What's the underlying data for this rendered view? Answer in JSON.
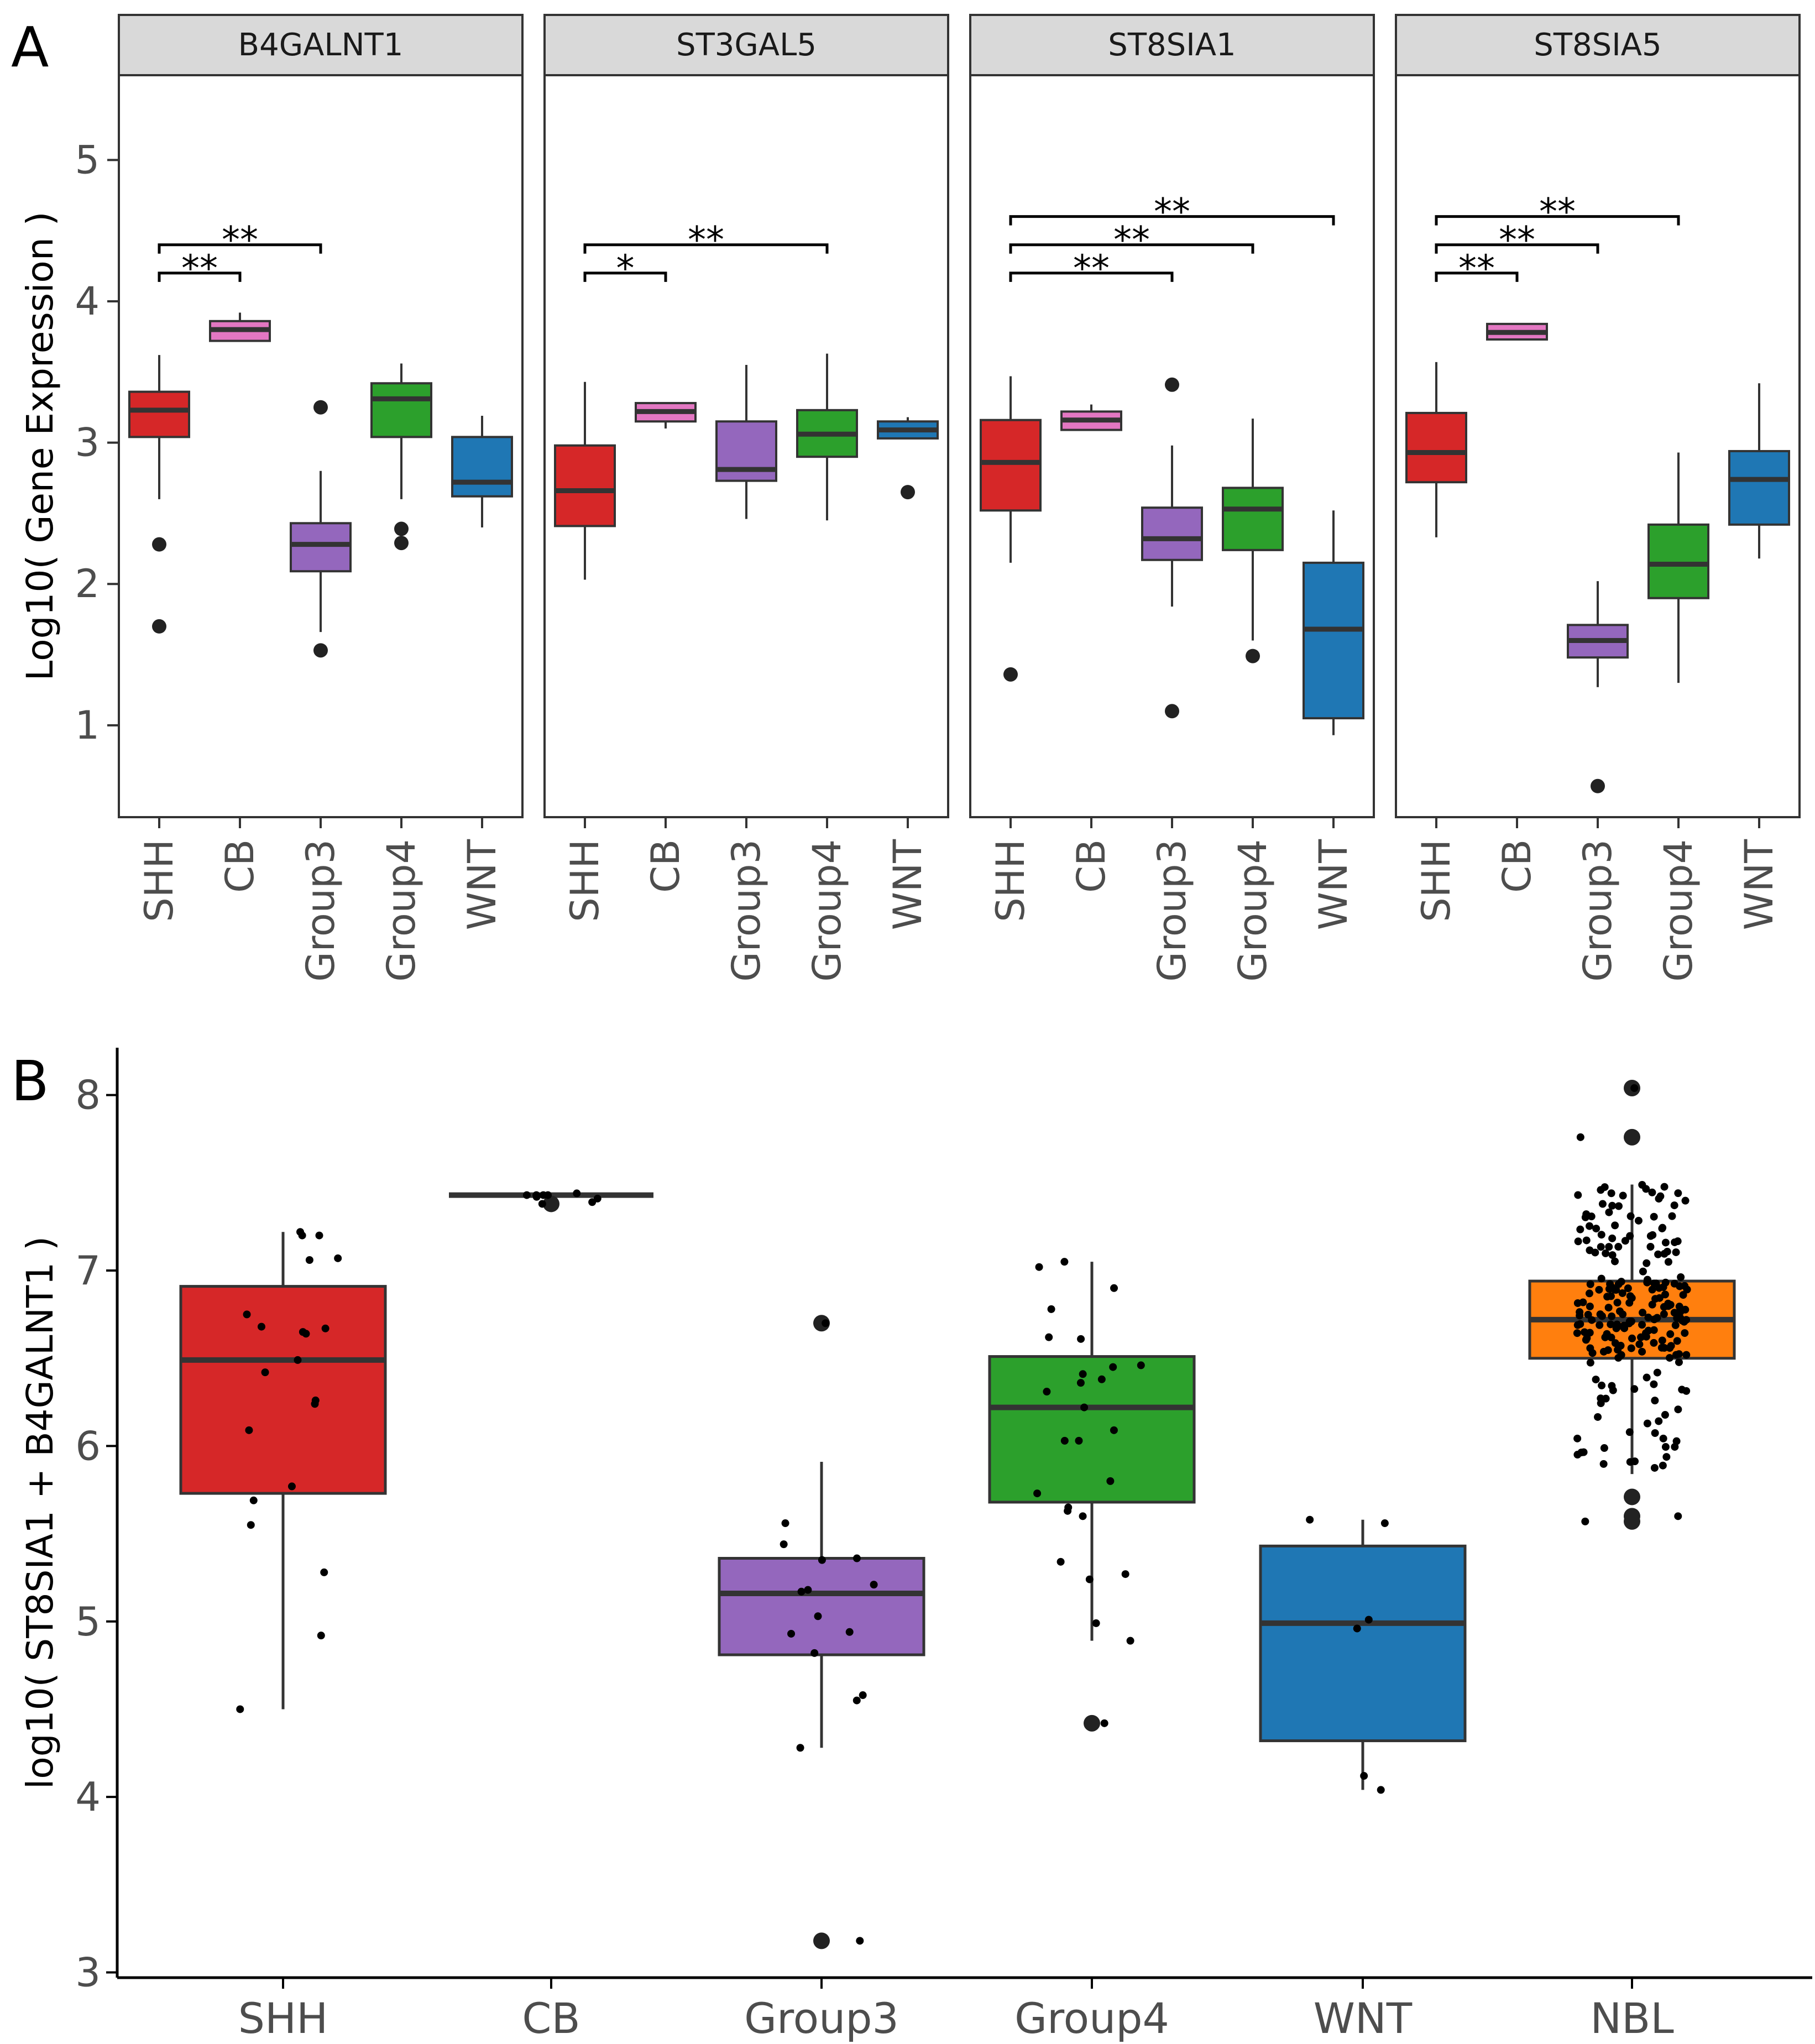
{
  "colors": {
    "SHH": "#d62728",
    "CB": "#e377c2",
    "Group3": "#9467bd",
    "Group4": "#2ca02c",
    "WNT": "#1f77b4",
    "NBL": "#ff7f0e",
    "strip": "#d9d9d9",
    "outline": "#333333",
    "axis_text": "#4d4d4d"
  },
  "panel_labels": {
    "a": "A",
    "b": "B"
  },
  "chart_data": [
    {
      "type": "boxplot",
      "facet_by": "gene",
      "ylabel": "Log10( Gene Expression )",
      "ylim": [
        0.35,
        5.6
      ],
      "yticks": [
        1,
        2,
        3,
        4,
        5
      ],
      "categories": [
        "SHH",
        "CB",
        "Group3",
        "Group4",
        "WNT"
      ],
      "panels": [
        {
          "gene": "B4GALNT1",
          "boxes": [
            {
              "group": "SHH",
              "whisker_low": 2.6,
              "q1": 3.04,
              "median": 3.23,
              "q3": 3.36,
              "whisker_high": 3.62,
              "outliers": [
                2.28,
                1.7
              ]
            },
            {
              "group": "CB",
              "whisker_low": 3.72,
              "q1": 3.72,
              "median": 3.8,
              "q3": 3.86,
              "whisker_high": 3.92,
              "outliers": []
            },
            {
              "group": "Group3",
              "whisker_low": 1.66,
              "q1": 2.09,
              "median": 2.28,
              "q3": 2.43,
              "whisker_high": 2.8,
              "outliers": [
                3.25,
                1.53
              ]
            },
            {
              "group": "Group4",
              "whisker_low": 2.6,
              "q1": 3.04,
              "median": 3.31,
              "q3": 3.42,
              "whisker_high": 3.56,
              "outliers": [
                2.39,
                2.29
              ]
            },
            {
              "group": "WNT",
              "whisker_low": 2.4,
              "q1": 2.62,
              "median": 2.72,
              "q3": 3.04,
              "whisker_high": 3.19,
              "outliers": []
            }
          ],
          "significance": [
            {
              "from": "SHH",
              "to": "CB",
              "y": 4.2,
              "label": "**"
            },
            {
              "from": "SHH",
              "to": "Group3",
              "y": 4.4,
              "label": "**"
            }
          ]
        },
        {
          "gene": "ST3GAL5",
          "boxes": [
            {
              "group": "SHH",
              "whisker_low": 2.03,
              "q1": 2.41,
              "median": 2.66,
              "q3": 2.98,
              "whisker_high": 3.43,
              "outliers": []
            },
            {
              "group": "CB",
              "whisker_low": 3.1,
              "q1": 3.15,
              "median": 3.22,
              "q3": 3.28,
              "whisker_high": 3.28,
              "outliers": []
            },
            {
              "group": "Group3",
              "whisker_low": 2.46,
              "q1": 2.73,
              "median": 2.81,
              "q3": 3.15,
              "whisker_high": 3.55,
              "outliers": []
            },
            {
              "group": "Group4",
              "whisker_low": 2.45,
              "q1": 2.9,
              "median": 3.06,
              "q3": 3.23,
              "whisker_high": 3.63,
              "outliers": []
            },
            {
              "group": "WNT",
              "whisker_low": 3.03,
              "q1": 3.03,
              "median": 3.09,
              "q3": 3.15,
              "whisker_high": 3.18,
              "outliers": [
                2.65
              ]
            }
          ],
          "significance": [
            {
              "from": "SHH",
              "to": "CB",
              "y": 4.2,
              "label": "*"
            },
            {
              "from": "SHH",
              "to": "Group4",
              "y": 4.4,
              "label": "**"
            }
          ]
        },
        {
          "gene": "ST8SIA1",
          "boxes": [
            {
              "group": "SHH",
              "whisker_low": 2.15,
              "q1": 2.52,
              "median": 2.86,
              "q3": 3.16,
              "whisker_high": 3.47,
              "outliers": [
                1.36
              ]
            },
            {
              "group": "CB",
              "whisker_low": 3.09,
              "q1": 3.09,
              "median": 3.16,
              "q3": 3.22,
              "whisker_high": 3.27,
              "outliers": []
            },
            {
              "group": "Group3",
              "whisker_low": 1.84,
              "q1": 2.17,
              "median": 2.32,
              "q3": 2.54,
              "whisker_high": 2.98,
              "outliers": [
                3.41,
                1.1
              ]
            },
            {
              "group": "Group4",
              "whisker_low": 1.6,
              "q1": 2.24,
              "median": 2.53,
              "q3": 2.68,
              "whisker_high": 3.17,
              "outliers": [
                1.49
              ]
            },
            {
              "group": "WNT",
              "whisker_low": 0.93,
              "q1": 1.05,
              "median": 1.68,
              "q3": 2.15,
              "whisker_high": 2.52,
              "outliers": []
            }
          ],
          "significance": [
            {
              "from": "SHH",
              "to": "Group3",
              "y": 4.2,
              "label": "**"
            },
            {
              "from": "SHH",
              "to": "Group4",
              "y": 4.4,
              "label": "**"
            },
            {
              "from": "SHH",
              "to": "WNT",
              "y": 4.6,
              "label": "**"
            }
          ]
        },
        {
          "gene": "ST8SIA5",
          "boxes": [
            {
              "group": "SHH",
              "whisker_low": 2.33,
              "q1": 2.72,
              "median": 2.93,
              "q3": 3.21,
              "whisker_high": 3.57,
              "outliers": []
            },
            {
              "group": "CB",
              "whisker_low": 3.73,
              "q1": 3.73,
              "median": 3.78,
              "q3": 3.84,
              "whisker_high": 3.84,
              "outliers": []
            },
            {
              "group": "Group3",
              "whisker_low": 1.27,
              "q1": 1.48,
              "median": 1.6,
              "q3": 1.71,
              "whisker_high": 2.02,
              "outliers": [
                0.57
              ]
            },
            {
              "group": "Group4",
              "whisker_low": 1.3,
              "q1": 1.9,
              "median": 2.14,
              "q3": 2.42,
              "whisker_high": 2.93,
              "outliers": []
            },
            {
              "group": "WNT",
              "whisker_low": 2.18,
              "q1": 2.42,
              "median": 2.74,
              "q3": 2.94,
              "whisker_high": 3.42,
              "outliers": []
            }
          ],
          "significance": [
            {
              "from": "SHH",
              "to": "CB",
              "y": 4.2,
              "label": "**"
            },
            {
              "from": "SHH",
              "to": "Group3",
              "y": 4.4,
              "label": "**"
            },
            {
              "from": "SHH",
              "to": "Group4",
              "y": 4.6,
              "label": "**"
            }
          ]
        }
      ]
    },
    {
      "type": "boxplot_with_jitter",
      "ylabel": "log10( ST8SIA1 + B4GALNT1 )",
      "xlabel": "",
      "ylim": [
        2.97,
        8.27
      ],
      "yticks": [
        3,
        4,
        5,
        6,
        7,
        8
      ],
      "categories": [
        "SHH",
        "CB",
        "Group3",
        "Group4",
        "WNT",
        "NBL"
      ],
      "boxes": [
        {
          "group": "SHH",
          "whisker_low": 4.5,
          "q1": 5.73,
          "median": 6.49,
          "q3": 6.91,
          "whisker_high": 7.22,
          "outliers": []
        },
        {
          "group": "CB",
          "whisker_low": 7.43,
          "q1": 7.43,
          "median": 7.43,
          "q3": 7.43,
          "whisker_high": 7.43,
          "outliers": [
            7.38
          ]
        },
        {
          "group": "Group3",
          "whisker_low": 4.28,
          "q1": 4.81,
          "median": 5.16,
          "q3": 5.36,
          "whisker_high": 5.91,
          "outliers": [
            6.7,
            3.18
          ]
        },
        {
          "group": "Group4",
          "whisker_low": 4.89,
          "q1": 5.68,
          "median": 6.22,
          "q3": 6.51,
          "whisker_high": 7.05,
          "outliers": [
            4.42
          ]
        },
        {
          "group": "WNT",
          "whisker_low": 4.04,
          "q1": 4.32,
          "median": 4.99,
          "q3": 5.43,
          "whisker_high": 5.58,
          "outliers": []
        },
        {
          "group": "NBL",
          "whisker_low": 5.84,
          "q1": 6.5,
          "median": 6.72,
          "q3": 6.94,
          "whisker_high": 7.49,
          "outliers": [
            8.04,
            7.76,
            5.71,
            5.6,
            5.57
          ]
        }
      ],
      "jitter_points": {
        "SHH": [
          7.22,
          6.68,
          6.49,
          7.07,
          6.65,
          7.2,
          6.75,
          6.67,
          6.64,
          7.2,
          7.06,
          6.42,
          6.26,
          6.09,
          5.77,
          5.69,
          5.55,
          6.24,
          5.28,
          4.92,
          4.5
        ],
        "CB": [
          7.43,
          7.44,
          7.43,
          7.43,
          7.42,
          7.41,
          7.39,
          7.38,
          7.43
        ],
        "Group3": [
          5.36,
          5.56,
          5.44,
          5.17,
          5.18,
          5.35,
          5.21,
          5.03,
          4.94,
          4.93,
          4.82,
          4.58,
          4.55,
          4.28,
          6.7,
          3.18
        ],
        "Group4": [
          6.9,
          6.62,
          6.38,
          6.31,
          6.45,
          6.36,
          6.09,
          6.03,
          6.03,
          6.61,
          6.41,
          6.46,
          6.22,
          7.02,
          7.05,
          6.78,
          5.8,
          5.73,
          5.65,
          5.63,
          5.6,
          5.34,
          5.27,
          5.24,
          4.99,
          4.89,
          4.42
        ]
      },
      "dense_jitter_note": "NBL group contains ~220 points between 5.57 and 8.04, concentrated around 6.5-6.94"
    }
  ]
}
